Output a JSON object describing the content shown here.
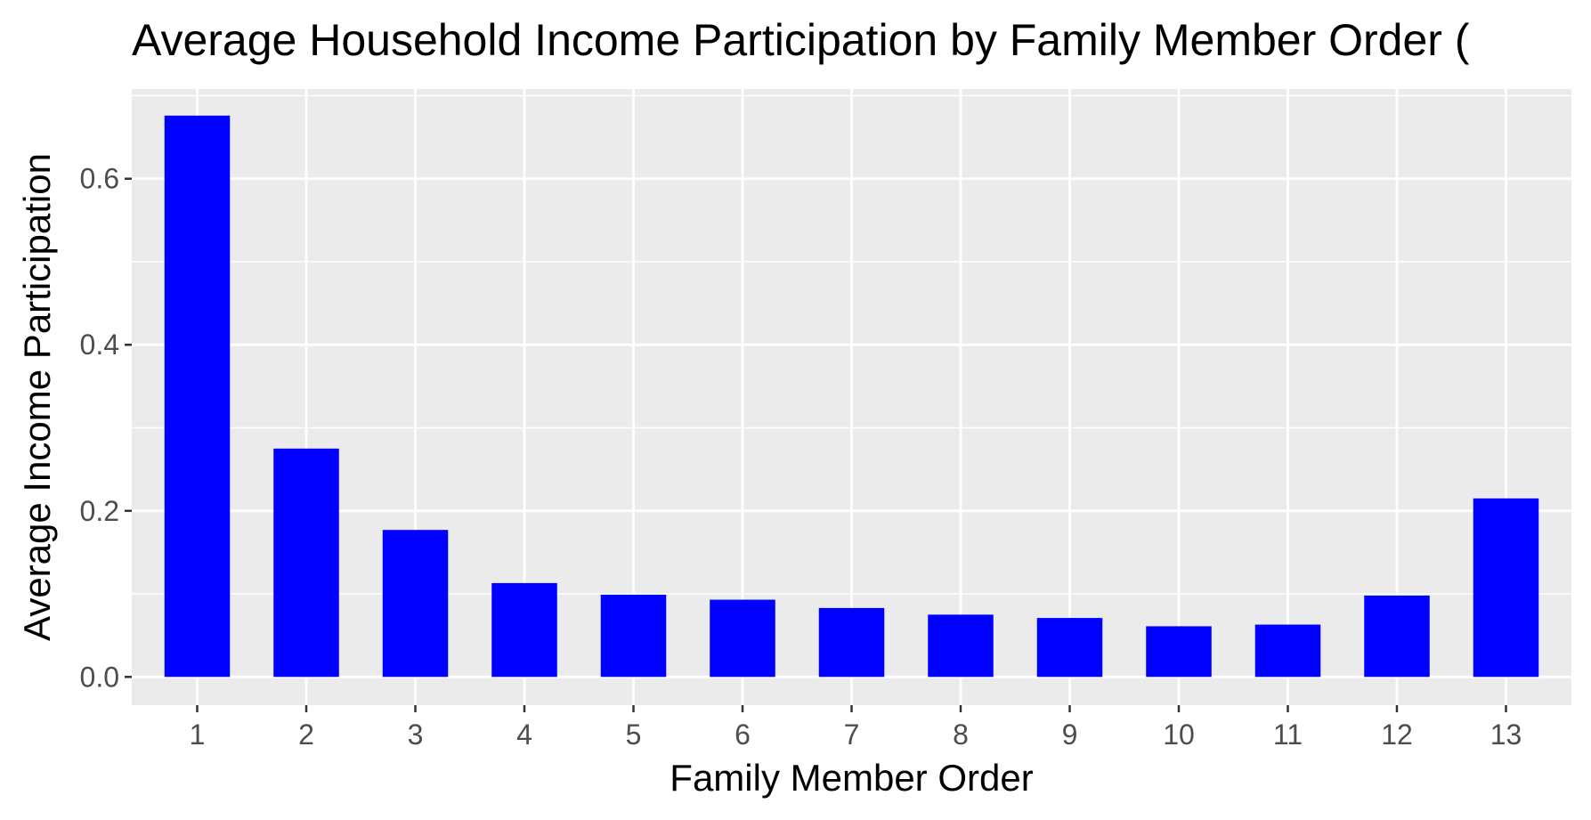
{
  "chart_data": {
    "type": "bar",
    "title": "Average Household Income Participation by Family Member Order (",
    "xlabel": "Family Member Order",
    "ylabel": "Average Income Participation",
    "categories": [
      "1",
      "2",
      "3",
      "4",
      "5",
      "6",
      "7",
      "8",
      "9",
      "10",
      "11",
      "12",
      "13"
    ],
    "values": [
      0.676,
      0.275,
      0.177,
      0.113,
      0.099,
      0.093,
      0.083,
      0.075,
      0.071,
      0.061,
      0.063,
      0.098,
      0.215
    ],
    "ylim": [
      -0.034,
      0.708
    ],
    "yticks": [
      0.0,
      0.2,
      0.4,
      0.6
    ],
    "ytick_labels": [
      "0.0",
      "0.2",
      "0.4",
      "0.6"
    ],
    "grid": true,
    "legend": "none",
    "colors": {
      "bar": "#0000ff",
      "panel": "#ebebeb",
      "grid": "#ffffff",
      "tick_text": "#4d4d4d",
      "tick_mark": "#333333",
      "text": "#000000"
    }
  }
}
